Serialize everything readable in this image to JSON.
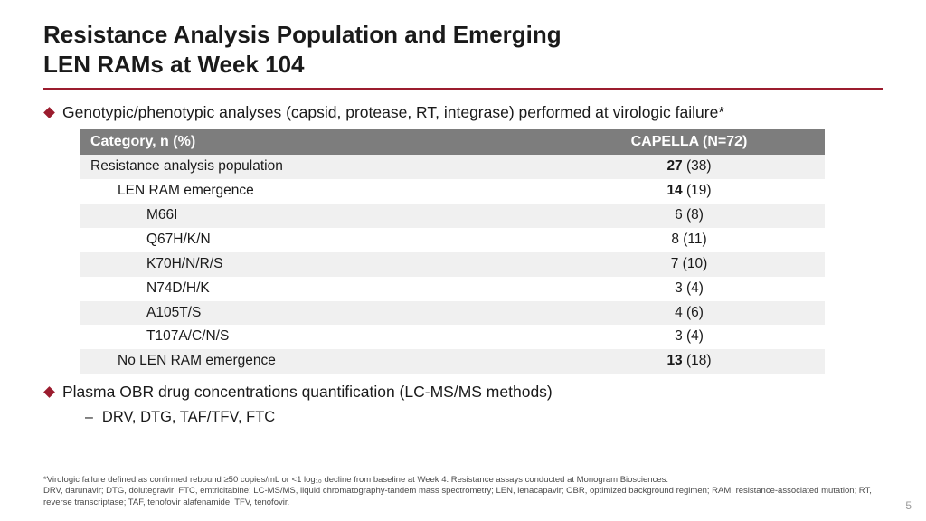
{
  "title_line1": "Resistance Analysis Population and Emerging",
  "title_line2": "LEN RAMs at Week 104",
  "bullet1": "Genotypic/phenotypic analyses (capsid, protease, RT, integrase) performed at virologic failure*",
  "table": {
    "header_col1": "Category, n (%)",
    "header_col2": "CAPELLA (N=72)",
    "rows": [
      {
        "label": "Resistance analysis population",
        "bold": "27",
        "rest": " (38)",
        "indent": 0,
        "strong": true
      },
      {
        "label": "LEN RAM emergence",
        "bold": "14",
        "rest": " (19)",
        "indent": 1,
        "strong": true
      },
      {
        "label": "M66I",
        "bold": "",
        "rest": "6 (8)",
        "indent": 2,
        "strong": false
      },
      {
        "label": "Q67H/K/N",
        "bold": "",
        "rest": "8 (11)",
        "indent": 2,
        "strong": false
      },
      {
        "label": "K70H/N/R/S",
        "bold": "",
        "rest": "7 (10)",
        "indent": 2,
        "strong": false
      },
      {
        "label": "N74D/H/K",
        "bold": "",
        "rest": "3 (4)",
        "indent": 2,
        "strong": false
      },
      {
        "label": "A105T/S",
        "bold": "",
        "rest": "4 (6)",
        "indent": 2,
        "strong": false
      },
      {
        "label": "T107A/C/N/S",
        "bold": "",
        "rest": "3 (4)",
        "indent": 2,
        "strong": false
      },
      {
        "label": "No LEN RAM emergence",
        "bold": "13",
        "rest": " (18)",
        "indent": 1,
        "strong": true
      }
    ]
  },
  "bullet2": "Plasma OBR drug concentrations quantification (LC-MS/MS methods)",
  "sub_bullet": "DRV, DTG, TAF/TFV, FTC",
  "footnote_l1": "*Virologic failure defined as confirmed rebound ≥50 copies/mL or <1 log₁₀ decline from baseline at Week 4. Resistance assays conducted at Monogram Biosciences.",
  "footnote_l2": "DRV, darunavir; DTG, dolutegravir; FTC, emtricitabine; LC-MS/MS, liquid chromatography-tandem mass spectrometry; LEN, lenacapavir; OBR, optimized background regimen; RAM, resistance-associated mutation; RT, reverse transcriptase; TAF, tenofovir alafenamide; TFV, tenofovir.",
  "page_number": "5"
}
